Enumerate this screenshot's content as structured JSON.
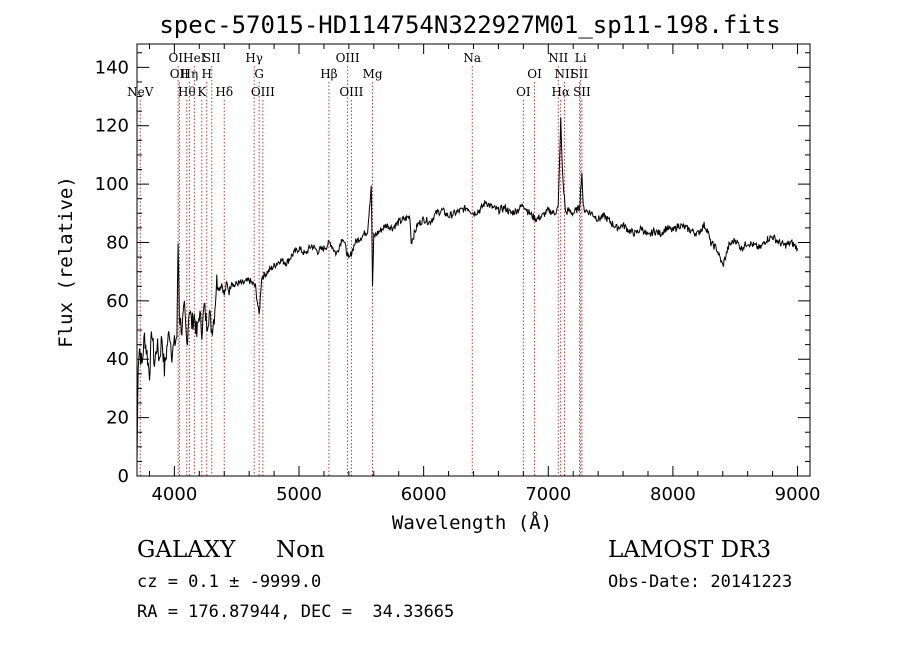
{
  "chart_data": {
    "type": "line",
    "title": "spec-57015-HD114754N322927M01_sp11-198.fits",
    "xlabel": "Wavelength (Å)",
    "ylabel": "Flux (relative)",
    "xlim": [
      3700,
      9100
    ],
    "ylim": [
      0,
      148
    ],
    "xticks": [
      4000,
      5000,
      6000,
      7000,
      8000,
      9000
    ],
    "yticks": [
      0,
      20,
      40,
      60,
      80,
      100,
      120,
      140
    ],
    "grid": false,
    "line_color": "#000000",
    "marker_color": "#b22222",
    "series": [
      {
        "x": [
          3700,
          3710,
          3720,
          3740,
          3760,
          3780,
          3800,
          3820,
          3840,
          3860,
          3880,
          3900,
          3920,
          3940,
          3960,
          3980,
          4000,
          4020,
          4030,
          4040,
          4060,
          4080,
          4100,
          4120,
          4140,
          4160,
          4180,
          4200,
          4220,
          4240,
          4260,
          4280,
          4300,
          4320,
          4340,
          4360,
          4380,
          4400,
          4420,
          4440,
          4460,
          4480,
          4500,
          4550,
          4600,
          4650,
          4680,
          4700,
          4750,
          4800,
          4850,
          4900,
          4950,
          5000,
          5050,
          5100,
          5150,
          5200,
          5250,
          5300,
          5350,
          5400,
          5450,
          5500,
          5550,
          5580,
          5590,
          5600,
          5650,
          5700,
          5750,
          5800,
          5850,
          5890,
          5900,
          5950,
          6000,
          6050,
          6100,
          6150,
          6200,
          6250,
          6300,
          6350,
          6400,
          6450,
          6500,
          6520,
          6550,
          6600,
          6650,
          6700,
          6750,
          6800,
          6850,
          6900,
          6950,
          7000,
          7050,
          7080,
          7100,
          7110,
          7120,
          7140,
          7160,
          7200,
          7250,
          7270,
          7280,
          7300,
          7350,
          7400,
          7450,
          7500,
          7550,
          7600,
          7650,
          7700,
          7750,
          7800,
          7850,
          7900,
          7950,
          8000,
          8050,
          8100,
          8150,
          8200,
          8250,
          8280,
          8300,
          8350,
          8400,
          8450,
          8500,
          8550,
          8600,
          8650,
          8700,
          8750,
          8800,
          8850,
          8900,
          8950,
          9000
        ],
        "y": [
          5,
          40,
          44,
          38,
          48,
          42,
          35,
          50,
          38,
          45,
          40,
          48,
          36,
          44,
          50,
          42,
          45,
          48,
          80,
          55,
          50,
          57,
          45,
          58,
          52,
          55,
          48,
          56,
          50,
          58,
          52,
          56,
          50,
          55,
          67,
          64,
          66,
          62,
          66,
          63,
          67,
          65,
          66,
          66,
          67,
          65,
          55,
          68,
          70,
          72,
          74,
          73,
          76,
          78,
          76,
          79,
          77,
          78,
          80,
          76,
          82,
          74,
          80,
          82,
          84,
          100,
          65,
          82,
          84,
          86,
          85,
          87,
          88,
          89,
          80,
          86,
          88,
          87,
          90,
          91,
          89,
          90,
          91,
          92,
          90,
          91,
          94,
          93,
          92,
          91,
          92,
          90,
          91,
          93,
          90,
          88,
          89,
          91,
          90,
          92,
          122,
          108,
          100,
          90,
          91,
          90,
          92,
          104,
          92,
          91,
          90,
          88,
          89,
          87,
          85,
          86,
          84,
          83,
          85,
          82,
          84,
          83,
          85,
          84,
          86,
          85,
          84,
          83,
          86,
          84,
          80,
          78,
          72,
          79,
          81,
          78,
          80,
          79,
          78,
          81,
          82,
          80,
          79,
          80,
          78
        ]
      }
    ],
    "lines": [
      {
        "label": "NeV",
        "x": 3726,
        "row": 3
      },
      {
        "label": "OII",
        "x": 4030,
        "row": 1
      },
      {
        "label": "OII",
        "x": 4040,
        "row": 2
      },
      {
        "label": "Hθ",
        "x": 4100,
        "row": 3
      },
      {
        "label": "Hη",
        "x": 4120,
        "row": 2
      },
      {
        "label": "HeI",
        "x": 4160,
        "row": 1
      },
      {
        "label": "K",
        "x": 4220,
        "row": 3
      },
      {
        "label": "H",
        "x": 4260,
        "row": 2
      },
      {
        "label": "SII",
        "x": 4300,
        "row": 1
      },
      {
        "label": "Hδ",
        "x": 4400,
        "row": 3
      },
      {
        "label": "Hγ",
        "x": 4640,
        "row": 1
      },
      {
        "label": "G",
        "x": 4680,
        "row": 2
      },
      {
        "label": "OIII",
        "x": 4710,
        "row": 3
      },
      {
        "label": "Hβ",
        "x": 5240,
        "row": 2
      },
      {
        "label": "OIII",
        "x": 5390,
        "row": 1
      },
      {
        "label": "OIII",
        "x": 5420,
        "row": 3
      },
      {
        "label": "Mg",
        "x": 5590,
        "row": 2
      },
      {
        "label": "Na",
        "x": 6390,
        "row": 1
      },
      {
        "label": "OI",
        "x": 6800,
        "row": 3
      },
      {
        "label": "OI",
        "x": 6890,
        "row": 2
      },
      {
        "label": "NII",
        "x": 7080,
        "row": 1
      },
      {
        "label": "Hα",
        "x": 7100,
        "row": 3
      },
      {
        "label": "NII",
        "x": 7130,
        "row": 2
      },
      {
        "label": "Li",
        "x": 7260,
        "row": 1
      },
      {
        "label": "SII",
        "x": 7250,
        "row": 2
      },
      {
        "label": "SII",
        "x": 7270,
        "row": 3
      }
    ]
  },
  "info": {
    "class": "GALAXY",
    "subclass": "Non",
    "survey": "LAMOST DR3",
    "cz": "cz = 0.1 ± -9999.0",
    "obs_date": "Obs-Date: 20141223",
    "coords": "RA = 176.87944, DEC =  34.33665"
  }
}
